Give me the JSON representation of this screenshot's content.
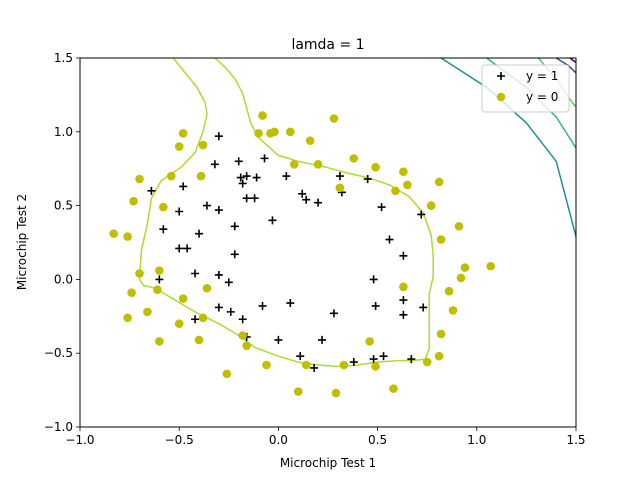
{
  "chart_data": {
    "type": "scatter",
    "title": "lamda = 1",
    "xlabel": "Microchip Test 1",
    "ylabel": "Microchip Test 2",
    "xlim": [
      -1.0,
      1.5
    ],
    "ylim": [
      -1.0,
      1.5
    ],
    "xticks": [
      -1.0,
      -0.5,
      0.0,
      0.5,
      1.0,
      1.5
    ],
    "yticks": [
      -1.0,
      -0.5,
      0.0,
      0.5,
      1.0,
      1.5
    ],
    "xtick_labels": [
      "−1.0",
      "−0.5",
      "0.0",
      "0.5",
      "1.0",
      "1.5"
    ],
    "ytick_labels": [
      "−1.0",
      "−0.5",
      "0.0",
      "0.5",
      "1.0",
      "1.5"
    ],
    "legend_position": "upper right",
    "series": [
      {
        "name": "y = 1",
        "marker": "plus",
        "color": "#000000",
        "points": [
          [
            -0.64,
            0.6
          ],
          [
            -0.48,
            0.63
          ],
          [
            -0.3,
            0.97
          ],
          [
            -0.32,
            0.78
          ],
          [
            -0.2,
            0.8
          ],
          [
            -0.19,
            0.69
          ],
          [
            -0.18,
            0.65
          ],
          [
            -0.16,
            0.7
          ],
          [
            -0.11,
            0.69
          ],
          [
            -0.07,
            0.82
          ],
          [
            0.04,
            0.7
          ],
          [
            0.12,
            0.58
          ],
          [
            0.14,
            0.54
          ],
          [
            0.2,
            0.52
          ],
          [
            0.31,
            0.7
          ],
          [
            0.32,
            0.59
          ],
          [
            0.45,
            0.68
          ],
          [
            0.52,
            0.49
          ],
          [
            0.56,
            0.27
          ],
          [
            0.63,
            0.16
          ],
          [
            0.72,
            0.44
          ],
          [
            -0.5,
            0.46
          ],
          [
            -0.36,
            0.5
          ],
          [
            -0.3,
            0.47
          ],
          [
            -0.16,
            0.55
          ],
          [
            -0.12,
            0.55
          ],
          [
            -0.03,
            0.4
          ],
          [
            -0.58,
            0.34
          ],
          [
            -0.4,
            0.31
          ],
          [
            -0.22,
            0.36
          ],
          [
            -0.46,
            0.21
          ],
          [
            -0.5,
            0.21
          ],
          [
            -0.22,
            0.17
          ],
          [
            -0.6,
            0.0
          ],
          [
            -0.42,
            0.04
          ],
          [
            -0.3,
            0.03
          ],
          [
            -0.25,
            -0.02
          ],
          [
            -0.3,
            -0.19
          ],
          [
            -0.24,
            -0.22
          ],
          [
            -0.18,
            -0.27
          ],
          [
            -0.08,
            -0.18
          ],
          [
            0.06,
            -0.16
          ],
          [
            -0.42,
            -0.27
          ],
          [
            -0.16,
            -0.39
          ],
          [
            0.0,
            -0.41
          ],
          [
            0.11,
            -0.52
          ],
          [
            0.18,
            -0.6
          ],
          [
            0.22,
            -0.41
          ],
          [
            0.28,
            -0.23
          ],
          [
            0.38,
            -0.56
          ],
          [
            0.48,
            0.0
          ],
          [
            0.49,
            -0.18
          ],
          [
            0.48,
            -0.54
          ],
          [
            0.53,
            -0.52
          ],
          [
            0.63,
            -0.14
          ],
          [
            0.63,
            -0.24
          ],
          [
            0.67,
            -0.54
          ],
          [
            0.73,
            -0.19
          ]
        ]
      },
      {
        "name": "y = 0",
        "marker": "circle",
        "color": "#bfbf00",
        "points": [
          [
            -0.83,
            0.31
          ],
          [
            -0.76,
            0.29
          ],
          [
            -0.73,
            0.53
          ],
          [
            -0.7,
            0.68
          ],
          [
            -0.58,
            0.49
          ],
          [
            -0.48,
            0.99
          ],
          [
            -0.5,
            0.9
          ],
          [
            -0.38,
            0.91
          ],
          [
            -0.39,
            0.7
          ],
          [
            -0.54,
            0.7
          ],
          [
            -0.6,
            0.06
          ],
          [
            -0.7,
            0.04
          ],
          [
            -0.74,
            -0.09
          ],
          [
            -0.66,
            -0.22
          ],
          [
            -0.76,
            -0.26
          ],
          [
            -0.61,
            -0.07
          ],
          [
            -0.48,
            -0.13
          ],
          [
            -0.36,
            -0.06
          ],
          [
            -0.5,
            -0.3
          ],
          [
            -0.38,
            -0.26
          ],
          [
            -0.4,
            -0.41
          ],
          [
            -0.6,
            -0.42
          ],
          [
            -0.18,
            -0.38
          ],
          [
            -0.16,
            -0.45
          ],
          [
            -0.26,
            -0.64
          ],
          [
            -0.06,
            -0.58
          ],
          [
            0.1,
            -0.76
          ],
          [
            0.14,
            -0.58
          ],
          [
            0.29,
            -0.77
          ],
          [
            0.33,
            -0.58
          ],
          [
            0.46,
            -0.42
          ],
          [
            0.49,
            -0.59
          ],
          [
            0.58,
            -0.74
          ],
          [
            0.75,
            -0.56
          ],
          [
            0.81,
            -0.52
          ],
          [
            0.82,
            -0.37
          ],
          [
            0.88,
            -0.21
          ],
          [
            0.86,
            -0.08
          ],
          [
            0.92,
            0.01
          ],
          [
            0.94,
            0.08
          ],
          [
            1.07,
            0.09
          ],
          [
            0.63,
            -0.05
          ],
          [
            0.82,
            0.27
          ],
          [
            0.91,
            0.36
          ],
          [
            0.77,
            0.5
          ],
          [
            0.81,
            0.66
          ],
          [
            0.65,
            0.64
          ],
          [
            0.63,
            0.73
          ],
          [
            0.59,
            0.6
          ],
          [
            0.49,
            0.76
          ],
          [
            0.38,
            0.82
          ],
          [
            0.31,
            0.62
          ],
          [
            0.28,
            1.09
          ],
          [
            0.2,
            0.78
          ],
          [
            0.16,
            0.94
          ],
          [
            0.08,
            0.78
          ],
          [
            0.06,
            1.0
          ],
          [
            -0.02,
            1.0
          ],
          [
            -0.1,
            0.99
          ],
          [
            -0.08,
            1.11
          ],
          [
            -0.04,
            0.99
          ],
          [
            0.31,
            0.62
          ]
        ]
      }
    ],
    "contours": [
      {
        "level": "decision boundary (0)",
        "color": "#addc30",
        "path": [
          [
            -0.53,
            1.5
          ],
          [
            -0.47,
            1.4
          ],
          [
            -0.41,
            1.3
          ],
          [
            -0.37,
            1.2
          ],
          [
            -0.36,
            1.12
          ],
          [
            -0.38,
            1.0
          ],
          [
            -0.42,
            0.86
          ],
          [
            -0.49,
            0.76
          ],
          [
            -0.59,
            0.67
          ],
          [
            -0.64,
            0.55
          ],
          [
            -0.66,
            0.38
          ],
          [
            -0.69,
            0.2
          ],
          [
            -0.7,
            0.0
          ],
          [
            -0.68,
            -0.04
          ],
          [
            -0.62,
            -0.06
          ],
          [
            -0.52,
            -0.14
          ],
          [
            -0.42,
            -0.22
          ],
          [
            -0.3,
            -0.3
          ],
          [
            -0.2,
            -0.38
          ],
          [
            -0.12,
            -0.46
          ],
          [
            0.0,
            -0.52
          ],
          [
            0.1,
            -0.56
          ],
          [
            0.2,
            -0.58
          ],
          [
            0.3,
            -0.59
          ],
          [
            0.4,
            -0.58
          ],
          [
            0.5,
            -0.56
          ],
          [
            0.6,
            -0.55
          ],
          [
            0.68,
            -0.55
          ],
          [
            0.74,
            -0.54
          ],
          [
            0.76,
            -0.47
          ],
          [
            0.76,
            -0.3
          ],
          [
            0.76,
            -0.1
          ],
          [
            0.78,
            0.02
          ],
          [
            0.78,
            0.16
          ],
          [
            0.77,
            0.3
          ],
          [
            0.73,
            0.45
          ],
          [
            0.66,
            0.56
          ],
          [
            0.56,
            0.64
          ],
          [
            0.45,
            0.69
          ],
          [
            0.35,
            0.72
          ],
          [
            0.24,
            0.76
          ],
          [
            0.1,
            0.8
          ],
          [
            0.0,
            0.84
          ],
          [
            -0.1,
            0.96
          ],
          [
            -0.14,
            1.06
          ],
          [
            -0.16,
            1.16
          ],
          [
            -0.18,
            1.26
          ],
          [
            -0.22,
            1.36
          ],
          [
            -0.27,
            1.44
          ],
          [
            -0.32,
            1.5
          ]
        ]
      },
      {
        "level": "outer 1",
        "color": "#5ec962",
        "path": [
          [
            1.31,
            1.5
          ],
          [
            1.4,
            1.36
          ],
          [
            1.48,
            1.2
          ],
          [
            1.5,
            1.17
          ]
        ]
      },
      {
        "level": "outer 2",
        "color": "#35b779",
        "path": [
          [
            1.05,
            1.5
          ],
          [
            1.25,
            1.3
          ],
          [
            1.4,
            1.1
          ],
          [
            1.5,
            0.89
          ]
        ]
      },
      {
        "level": "outer 3",
        "color": "#21918c",
        "path": [
          [
            0.82,
            1.5
          ],
          [
            1.05,
            1.3
          ],
          [
            1.25,
            1.06
          ],
          [
            1.4,
            0.8
          ],
          [
            1.5,
            0.29
          ]
        ]
      },
      {
        "level": "outer 4",
        "color": "#3b528b",
        "path": [
          [
            1.4,
            1.5
          ],
          [
            1.46,
            1.45
          ],
          [
            1.5,
            1.4
          ]
        ]
      },
      {
        "level": "outer 5",
        "color": "#440154",
        "path": [
          [
            1.47,
            1.5
          ],
          [
            1.5,
            1.47
          ]
        ]
      }
    ]
  }
}
